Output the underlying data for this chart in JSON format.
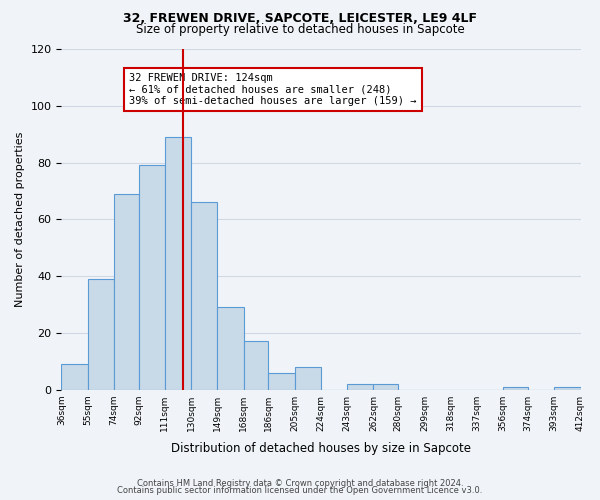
{
  "title1": "32, FREWEN DRIVE, SAPCOTE, LEICESTER, LE9 4LF",
  "title2": "Size of property relative to detached houses in Sapcote",
  "xlabel": "Distribution of detached houses by size in Sapcote",
  "ylabel": "Number of detached properties",
  "bar_edges": [
    36,
    55,
    74,
    92,
    111,
    130,
    149,
    168,
    186,
    205,
    224,
    243,
    262,
    280,
    299,
    318,
    337,
    356,
    374,
    393,
    412
  ],
  "bar_heights": [
    9,
    39,
    69,
    79,
    89,
    66,
    29,
    17,
    6,
    8,
    0,
    2,
    2,
    0,
    0,
    0,
    0,
    1,
    0,
    1
  ],
  "bar_facecolor": "#c8d9e8",
  "bar_edgecolor": "#5b9bd5",
  "grid_color": "#d0d8e4",
  "vline_x": 124,
  "vline_color": "#cc0000",
  "annotation_text": "32 FREWEN DRIVE: 124sqm\n← 61% of detached houses are smaller (248)\n39% of semi-detached houses are larger (159) →",
  "annotation_bbox_edgecolor": "#cc0000",
  "annotation_bbox_facecolor": "#ffffff",
  "ylim": [
    0,
    120
  ],
  "yticks": [
    0,
    20,
    40,
    60,
    80,
    100,
    120
  ],
  "tick_labels": [
    "36sqm",
    "55sqm",
    "74sqm",
    "92sqm",
    "111sqm",
    "130sqm",
    "149sqm",
    "168sqm",
    "186sqm",
    "205sqm",
    "224sqm",
    "243sqm",
    "262sqm",
    "280sqm",
    "299sqm",
    "318sqm",
    "337sqm",
    "356sqm",
    "374sqm",
    "393sqm",
    "412sqm"
  ],
  "footer1": "Contains HM Land Registry data © Crown copyright and database right 2024.",
  "footer2": "Contains public sector information licensed under the Open Government Licence v3.0.",
  "bg_color": "#f0f4f8"
}
